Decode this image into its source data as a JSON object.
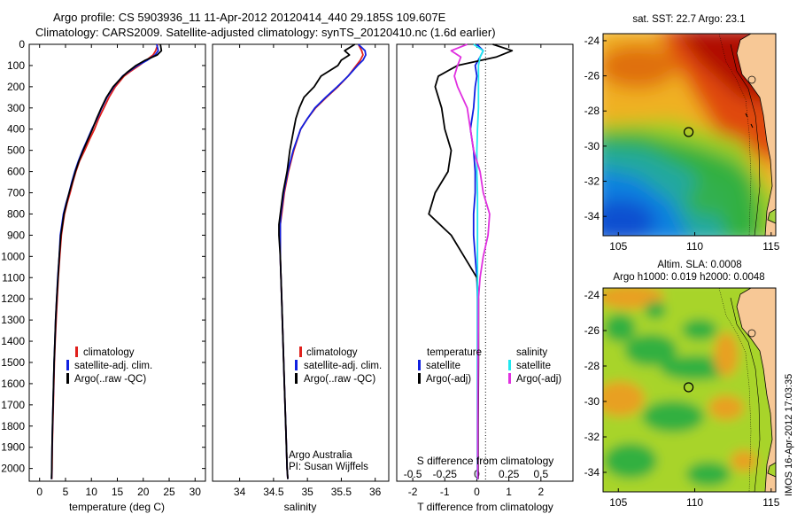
{
  "header": {
    "line1": "Argo profile: CS 5903936_11 11-Apr-2012 20120414_440 29.185S 109.607E",
    "line2": "Climatology: CARS2009. Satellite-adjusted climatology: synTS_20120410.nc (1.6d earlier)"
  },
  "side_stamp": "IMOS 16-Apr-2012 17:03:35",
  "colors": {
    "clim": "#e0201c",
    "sat": "#1020e0",
    "argo": "#000000",
    "sal_sat": "#20e8f0",
    "sal_argo": "#e030e0"
  },
  "chart_data": [
    {
      "type": "line",
      "xlabel": "temperature (deg C)",
      "xlim": [
        -2,
        32
      ],
      "xticks": [
        "0",
        "5",
        "10",
        "15",
        "20",
        "25",
        "30"
      ],
      "ylim": [
        0,
        2060
      ],
      "yticks": [
        "0",
        "100",
        "200",
        "300",
        "400",
        "500",
        "600",
        "700",
        "800",
        "900",
        "1000",
        "1100",
        "1200",
        "1300",
        "1400",
        "1500",
        "1600",
        "1700",
        "1800",
        "1900",
        "2000"
      ],
      "legend": [
        "climatology",
        "satellite-adj. clim.",
        "Argo(..raw -QC)"
      ],
      "depth": [
        0,
        30,
        50,
        75,
        100,
        130,
        150,
        200,
        250,
        300,
        350,
        400,
        450,
        500,
        550,
        600,
        650,
        700,
        750,
        800,
        850,
        900,
        1000,
        1100,
        1200,
        1300,
        1400,
        1500,
        1600,
        1700,
        1800,
        1900,
        2000,
        2050
      ],
      "series": [
        {
          "name": "climatology",
          "values": [
            22.8,
            22.4,
            21.9,
            20.6,
            19.2,
            17.4,
            16.3,
            14.6,
            13.4,
            12.4,
            11.4,
            10.6,
            9.6,
            8.7,
            7.7,
            7.0,
            6.4,
            5.9,
            5.3,
            4.8,
            4.5,
            4.2,
            3.9,
            3.6,
            3.4,
            3.2,
            3.0,
            2.85,
            2.75,
            2.65,
            2.55,
            2.45,
            2.4,
            2.35
          ]
        },
        {
          "name": "satellite-adj. clim.",
          "values": [
            22.6,
            22.9,
            22.3,
            20.8,
            18.9,
            17.1,
            16.0,
            14.3,
            13.0,
            12.0,
            11.1,
            10.1,
            9.2,
            8.3,
            7.5,
            6.8,
            6.2,
            5.7,
            5.1,
            4.6,
            4.3,
            4.0,
            3.8,
            3.5,
            3.3,
            3.1,
            2.95,
            2.8,
            2.7,
            2.6,
            2.5,
            2.4,
            2.35,
            2.3
          ]
        },
        {
          "name": "Argo(..raw -QC)",
          "values": [
            23.3,
            23.5,
            22.7,
            20.4,
            18.6,
            17.0,
            16.1,
            14.2,
            12.9,
            11.9,
            11.0,
            10.2,
            9.3,
            8.4,
            7.6,
            6.9,
            6.3,
            5.7,
            5.2,
            4.7,
            4.4,
            4.1,
            3.8,
            3.55,
            3.3,
            3.1,
            2.95,
            2.8,
            2.7,
            2.6,
            2.5,
            2.4,
            2.35,
            2.3
          ]
        }
      ]
    },
    {
      "type": "line",
      "xlabel": "salinity",
      "xlim": [
        33.6,
        36.2
      ],
      "xticks": [
        "34",
        "34.5",
        "35",
        "35.5",
        "36"
      ],
      "legend": [
        "climatology",
        "satellite-adj. clim.",
        "Argo(..raw -QC)"
      ],
      "notes": [
        "Argo Australia",
        "PI: Susan Wijffels"
      ],
      "depth": [
        0,
        30,
        50,
        75,
        100,
        150,
        200,
        250,
        300,
        350,
        400,
        500,
        600,
        700,
        800,
        850,
        900,
        1000,
        1100,
        1200,
        1400,
        1600,
        1800,
        2000,
        2050
      ],
      "series": [
        {
          "name": "climatology",
          "values": [
            35.75,
            35.8,
            35.82,
            35.78,
            35.72,
            35.6,
            35.45,
            35.28,
            35.12,
            35.0,
            34.9,
            34.8,
            34.72,
            34.66,
            34.62,
            34.6,
            34.6,
            34.6,
            34.61,
            34.62,
            34.64,
            34.66,
            34.68,
            34.7,
            34.71
          ]
        },
        {
          "name": "satellite-adj. clim.",
          "values": [
            35.75,
            35.85,
            35.86,
            35.82,
            35.74,
            35.6,
            35.44,
            35.27,
            35.11,
            35.0,
            34.9,
            34.79,
            34.71,
            34.65,
            34.61,
            34.6,
            34.6,
            34.6,
            34.61,
            34.62,
            34.64,
            34.66,
            34.68,
            34.7,
            34.71
          ]
        },
        {
          "name": "Argo(..raw -QC)",
          "values": [
            35.7,
            35.55,
            35.62,
            35.5,
            35.45,
            35.2,
            35.1,
            34.95,
            34.88,
            34.83,
            34.8,
            34.74,
            34.7,
            34.64,
            34.6,
            34.58,
            34.58,
            34.6,
            34.61,
            34.62,
            34.64,
            34.66,
            34.68,
            34.7,
            34.71
          ]
        }
      ]
    },
    {
      "type": "line",
      "xlabel": "T difference from climatology",
      "xlabel_top": "S difference from climatology",
      "xlim": [
        -2.5,
        3
      ],
      "xticks": [
        "-2",
        "-1",
        "0",
        "1",
        "2"
      ],
      "xticks_top": [
        "-0.5",
        "-0.25",
        "0",
        "0.25",
        "0.5"
      ],
      "legend_titles": [
        "temperature",
        "salinity"
      ],
      "legend": [
        "satellite",
        "Argo(-adj)",
        "satellite",
        "Argo(-adj)"
      ],
      "depth": [
        0,
        30,
        60,
        100,
        150,
        200,
        300,
        400,
        500,
        600,
        700,
        800,
        900,
        1000,
        1100,
        1200,
        1500,
        1800,
        2050
      ],
      "series": [
        {
          "name": "satellite",
          "values": [
            0.0,
            0.2,
            0.1,
            -0.05,
            0.0,
            -0.05,
            -0.1,
            -0.2,
            -0.1,
            -0.05,
            -0.05,
            -0.1,
            -0.1,
            -0.05,
            0.0,
            0.02,
            0.02,
            0.02,
            0.02
          ]
        },
        {
          "name": "Argo(-adj)",
          "values": [
            0.5,
            1.1,
            0.6,
            -0.6,
            -1.2,
            -1.3,
            -1.1,
            -1.0,
            -0.8,
            -0.9,
            -1.3,
            -1.5,
            -0.8,
            -0.4,
            0.0,
            0.05,
            0.05,
            0.04,
            0.04
          ]
        },
        {
          "name": "satellite",
          "values": [
            -0.1,
            0.2,
            0.1,
            0.05,
            0.05,
            0.05,
            0.05,
            0.02,
            0.0,
            0.0,
            0.02,
            0.02,
            0.02,
            0.02,
            0.02,
            0.02,
            0.02,
            0.02,
            0.02
          ]
        },
        {
          "name": "Argo(-adj)",
          "values": [
            -0.3,
            -0.8,
            -0.5,
            -0.6,
            -0.7,
            -0.6,
            -0.3,
            -0.2,
            -0.1,
            0.1,
            0.2,
            0.4,
            0.35,
            0.2,
            0.1,
            0.05,
            0.04,
            0.03,
            0.03
          ]
        }
      ]
    },
    {
      "type": "heatmap",
      "title": "sat. SST: 22.7 Argo: 23.1",
      "xticks": [
        "105",
        "110",
        "115"
      ],
      "yticks": [
        "-24",
        "-26",
        "-28",
        "-30",
        "-32",
        "-34"
      ],
      "xlim": [
        104,
        115.3
      ],
      "ylim": [
        -35.1,
        -23.6
      ],
      "marker": {
        "lon": 109.6,
        "lat": -29.2
      }
    },
    {
      "type": "heatmap",
      "title": "Altim. SLA: 0.0008",
      "subtitle": "Argo h1000: 0.019 h2000: 0.0048",
      "xticks": [
        "105",
        "110",
        "115"
      ],
      "yticks": [
        "-24",
        "-26",
        "-28",
        "-30",
        "-32",
        "-34"
      ],
      "xlim": [
        104,
        115.3
      ],
      "ylim": [
        -35.1,
        -23.6
      ],
      "marker": {
        "lon": 109.6,
        "lat": -29.2
      }
    }
  ]
}
